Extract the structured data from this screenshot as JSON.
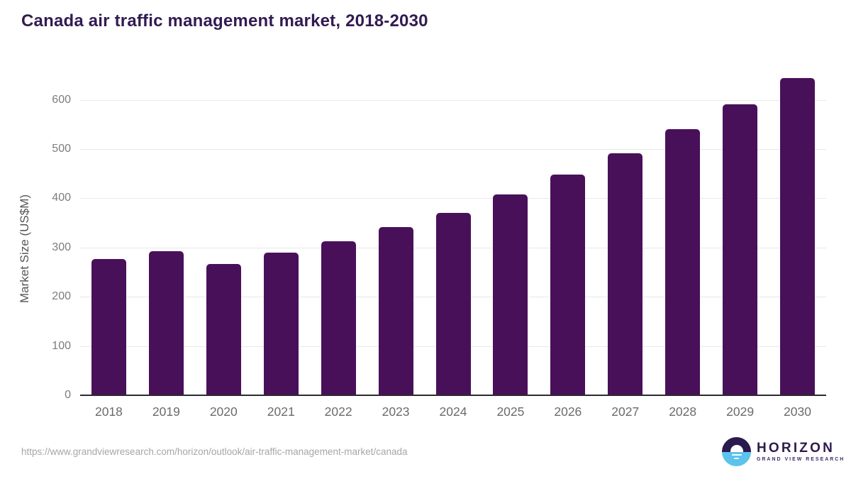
{
  "header": {
    "title": "Canada air traffic management market, 2018-2030"
  },
  "chart_data": {
    "type": "bar",
    "title": "Canada air traffic management market, 2018-2030",
    "categories": [
      "2018",
      "2019",
      "2020",
      "2021",
      "2022",
      "2023",
      "2024",
      "2025",
      "2026",
      "2027",
      "2028",
      "2029",
      "2030"
    ],
    "values": [
      276,
      292,
      267,
      290,
      313,
      341,
      371,
      408,
      448,
      492,
      540,
      591,
      644
    ],
    "xlabel": "",
    "ylabel": "Market Size (US$M)",
    "ylim": [
      0,
      660
    ],
    "yticks": [
      0,
      100,
      200,
      300,
      400,
      500,
      600
    ],
    "grid": true,
    "legend": false,
    "bar_color": "#49105a",
    "grid_color": "#e8e8e8",
    "axis_color": "#2b2b2b",
    "ytick_color": "#7d7d7d",
    "xtick_color": "#6b6b6b"
  },
  "footer": {
    "source_url": "https://www.grandviewresearch.com/horizon/outlook/air-traffic-management-market/canada",
    "logo": {
      "brand": "HORIZON",
      "subtitle": "GRAND VIEW RESEARCH",
      "dark_color": "#2a1a4d",
      "blue_color": "#5cc3ec"
    }
  },
  "colors": {
    "title_purple": "#321b52",
    "bar_purple": "#49105a",
    "background": "#ffffff"
  }
}
